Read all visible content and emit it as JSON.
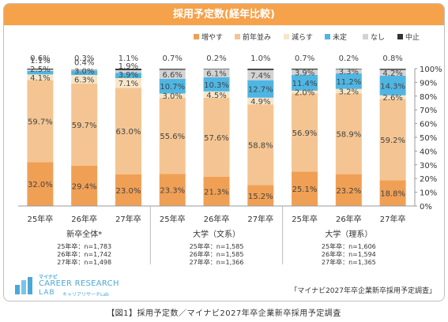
{
  "title": "採用予定数(経年比較)",
  "caption": "【図1】採用予定数／マイナビ2027年卒企業新卒採用予定調査",
  "source_note": "「マイナビ2027年卒企業新卒採用予定調査」",
  "brand": {
    "small": "マイナビ",
    "main": "CAREER RESEARCH",
    "lab": "LAB",
    "kana": "キャリアリサーチLab"
  },
  "colors": {
    "title_bar": "#f5a24b",
    "増やす": "#f0a055",
    "前年並み": "#f4c592",
    "減らす": "#f9e6c8",
    "未定": "#4fb6e3",
    "なし": "#d3d3d3",
    "中止": "#333333"
  },
  "chart_data": {
    "type": "bar",
    "stacked": true,
    "categories": [
      "25年卒",
      "26年卒",
      "27年卒",
      "25年卒",
      "26年卒",
      "27年卒",
      "25年卒",
      "26年卒",
      "27年卒"
    ],
    "groups": [
      {
        "label": "新卒全体*",
        "notes": [
          "25年卒：n=1,783",
          "26年卒：n=1,742",
          "27年卒：n=1,498"
        ]
      },
      {
        "label": "大学（文系）",
        "notes": [
          "25年卒：n=1,585",
          "26年卒：n=1,585",
          "27年卒：n=1,366"
        ]
      },
      {
        "label": "大学（理系）",
        "notes": [
          "25年卒：n=1,606",
          "26年卒：n=1,594",
          "27年卒：n=1,365"
        ]
      }
    ],
    "series": [
      {
        "name": "増やす",
        "values": [
          32.0,
          29.4,
          23.0,
          23.3,
          21.3,
          15.2,
          25.1,
          23.2,
          18.8
        ]
      },
      {
        "name": "前年並み",
        "values": [
          59.7,
          59.7,
          63.0,
          55.6,
          57.6,
          58.8,
          56.9,
          58.9,
          59.2
        ]
      },
      {
        "name": "減らす",
        "values": [
          4.1,
          6.3,
          7.1,
          3.0,
          4.5,
          4.9,
          2.0,
          3.2,
          2.6
        ]
      },
      {
        "name": "未定",
        "values": [
          2.5,
          3.0,
          3.9,
          10.7,
          10.3,
          12.7,
          11.4,
          11.2,
          14.3
        ]
      },
      {
        "name": "なし",
        "values": [
          1.1,
          0.4,
          1.9,
          6.6,
          6.1,
          7.4,
          3.9,
          3.3,
          4.2
        ]
      },
      {
        "name": "中止",
        "values": [
          0.6,
          0.3,
          1.1,
          0.7,
          0.2,
          1.0,
          0.7,
          0.2,
          0.8
        ]
      }
    ],
    "ylim": [
      0,
      100
    ],
    "yticks": [
      "0%",
      "10%",
      "20%",
      "30%",
      "40%",
      "50%",
      "60%",
      "70%",
      "80%",
      "90%",
      "100%"
    ],
    "legend_position": "top-right",
    "grid": false
  }
}
